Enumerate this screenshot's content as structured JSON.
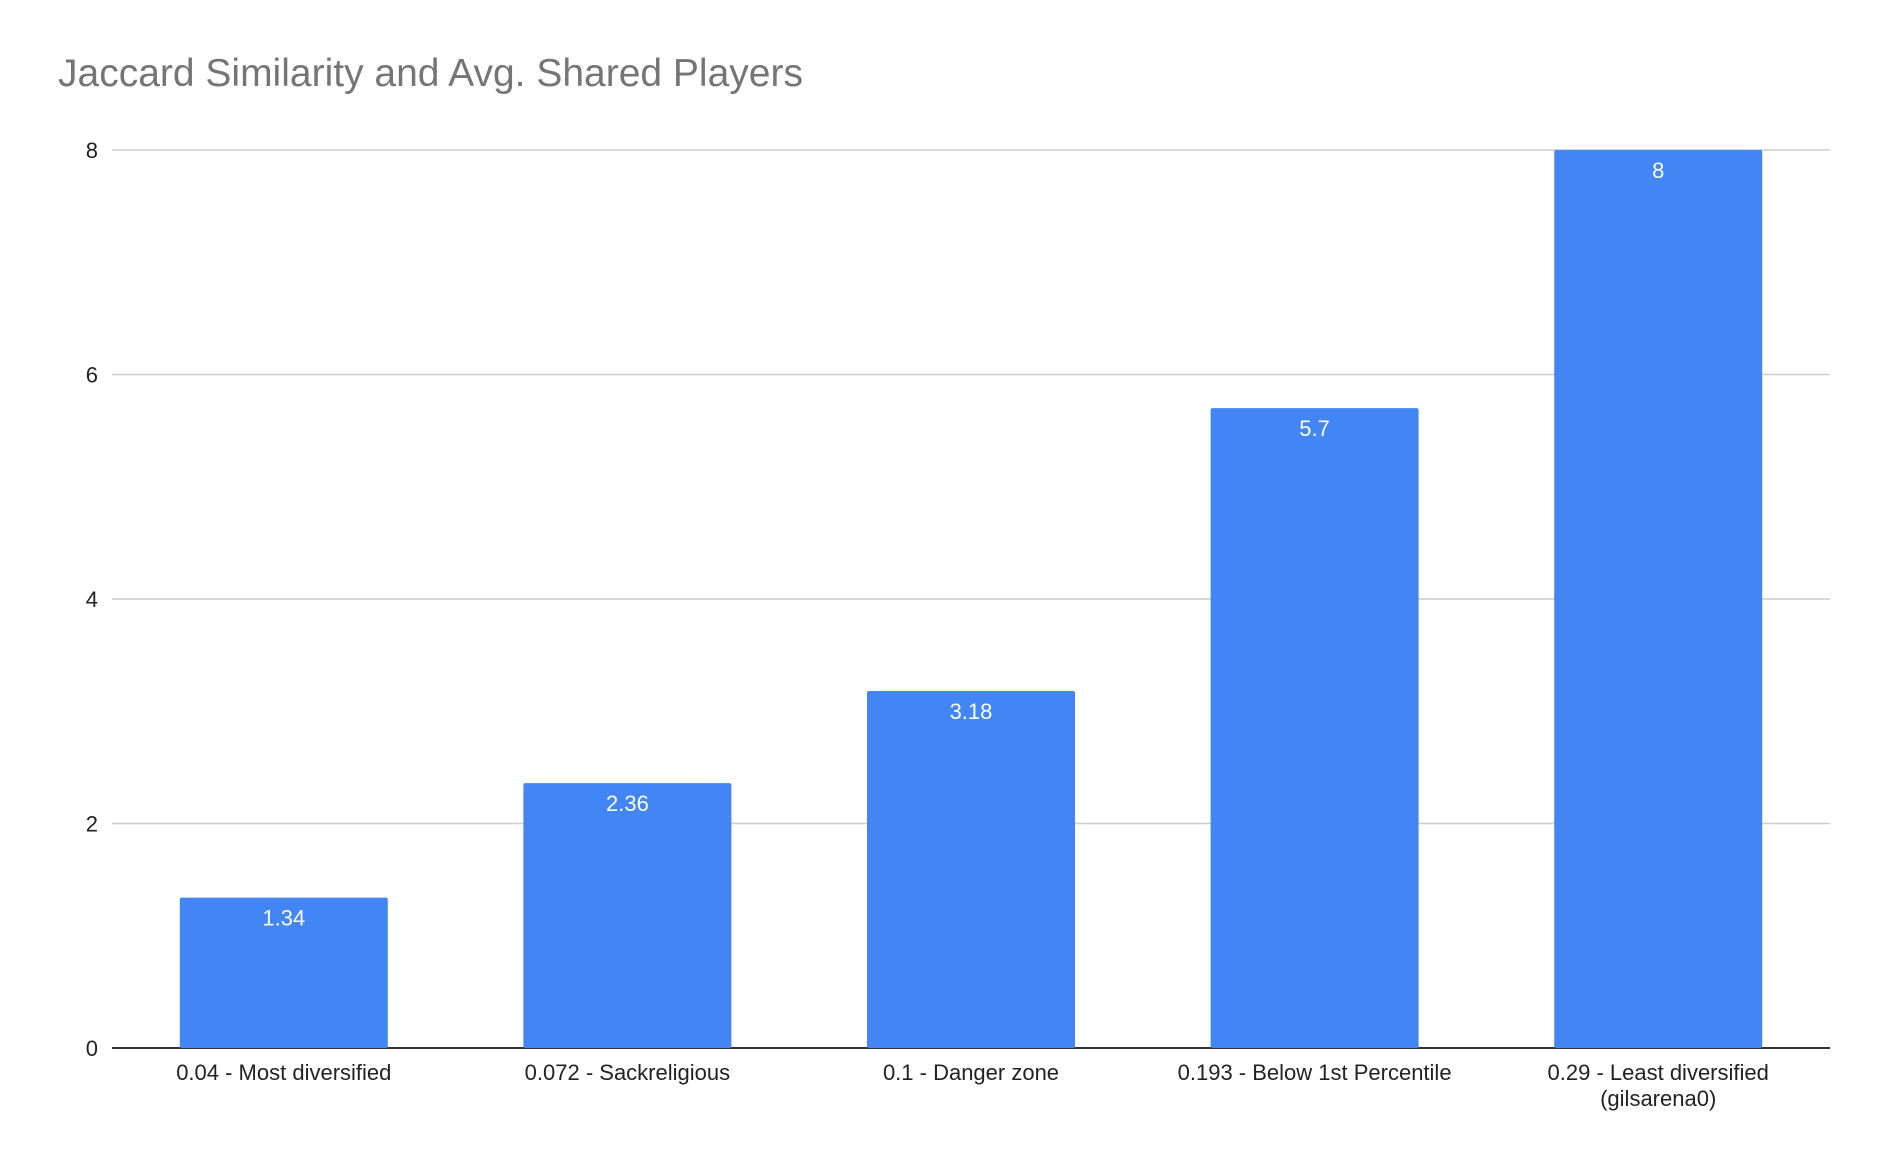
{
  "chart_data": {
    "type": "bar",
    "title": "Jaccard Similarity and Avg. Shared Players",
    "xlabel": "",
    "ylabel": "",
    "categories": [
      "0.04 - Most diversified",
      "0.072 - Sackreligious",
      "0.1 - Danger zone",
      "0.193 - Below 1st Percentile",
      "0.29 - Least diversified (gilsarena0)"
    ],
    "values": [
      1.34,
      2.36,
      3.18,
      5.7,
      8
    ],
    "data_labels": [
      "1.34",
      "2.36",
      "3.18",
      "5.7",
      "8"
    ],
    "ylim": [
      0,
      8
    ],
    "yticks": [
      "0",
      "2",
      "4",
      "6",
      "8"
    ],
    "grid": true,
    "legend": "none",
    "colors": {
      "bar": "#4285f4",
      "grid": "#cccccc",
      "axis": "#333333",
      "title": "#757575"
    }
  }
}
